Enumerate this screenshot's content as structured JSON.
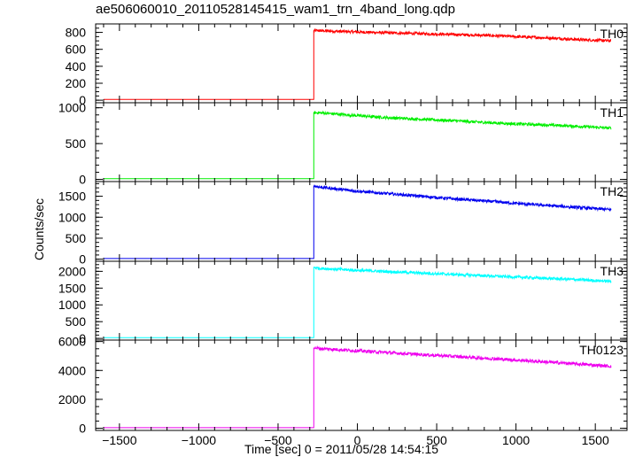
{
  "title": "ae506060010_20110528145415_wam1_trn_4band_long.qdp",
  "xlabel": "Time [sec] 0 = 2011/05/28 14:54:15",
  "ylabel": "Counts/sec",
  "chart_data": [
    {
      "type": "line",
      "panel": "TH0",
      "color": "#ff0000",
      "xlim": [
        -1650,
        1700
      ],
      "ylim": [
        -30,
        900
      ],
      "yticks": [
        0,
        200,
        400,
        600,
        800
      ],
      "ytick_labels": [
        "0",
        "200",
        "400",
        "600",
        "800"
      ],
      "series": [
        {
          "name": "TH0",
          "x": [
            -1600,
            -275,
            -275,
            -240,
            0,
            200,
            400,
            600,
            800,
            1000,
            1200,
            1400,
            1600
          ],
          "y": [
            10,
            10,
            820,
            820,
            805,
            795,
            785,
            775,
            765,
            750,
            735,
            715,
            700
          ]
        }
      ]
    },
    {
      "type": "line",
      "panel": "TH1",
      "color": "#00ee00",
      "xlim": [
        -1650,
        1700
      ],
      "ylim": [
        -30,
        1070
      ],
      "yticks": [
        0,
        500,
        1000
      ],
      "ytick_labels": [
        "0",
        "500",
        "1000"
      ],
      "series": [
        {
          "name": "TH1",
          "x": [
            -1600,
            -275,
            -275,
            -240,
            0,
            200,
            400,
            600,
            800,
            1000,
            1200,
            1400,
            1600
          ],
          "y": [
            10,
            10,
            930,
            930,
            890,
            860,
            840,
            820,
            795,
            775,
            760,
            740,
            715
          ]
        }
      ]
    },
    {
      "type": "line",
      "panel": "TH2",
      "color": "#0000ee",
      "xlim": [
        -1650,
        1700
      ],
      "ylim": [
        -50,
        1850
      ],
      "yticks": [
        0,
        500,
        1000,
        1500
      ],
      "ytick_labels": [
        "0",
        "500",
        "1000",
        "1500"
      ],
      "series": [
        {
          "name": "TH2",
          "x": [
            -1600,
            -275,
            -275,
            -240,
            0,
            200,
            400,
            600,
            800,
            1000,
            1200,
            1400,
            1600
          ],
          "y": [
            15,
            15,
            1750,
            1720,
            1620,
            1560,
            1500,
            1440,
            1390,
            1330,
            1280,
            1230,
            1180
          ]
        }
      ]
    },
    {
      "type": "line",
      "panel": "TH3",
      "color": "#00ffff",
      "xlim": [
        -1650,
        1700
      ],
      "ylim": [
        -50,
        2300
      ],
      "yticks": [
        0,
        500,
        1000,
        1500,
        2000
      ],
      "ytick_labels": [
        "0",
        "500",
        "1000",
        "1500",
        "2000"
      ],
      "series": [
        {
          "name": "TH3",
          "x": [
            -1600,
            -275,
            -275,
            -240,
            0,
            200,
            400,
            600,
            800,
            1000,
            1200,
            1400,
            1600
          ],
          "y": [
            20,
            20,
            2120,
            2090,
            2030,
            1990,
            1950,
            1910,
            1870,
            1830,
            1790,
            1750,
            1700
          ]
        }
      ]
    },
    {
      "type": "line",
      "panel": "TH0123",
      "color": "#ee00ee",
      "xlim": [
        -1650,
        1700
      ],
      "ylim": [
        -150,
        6100
      ],
      "yticks": [
        0,
        2000,
        4000,
        6000
      ],
      "ytick_labels": [
        "0",
        "2000",
        "4000",
        "6000"
      ],
      "series": [
        {
          "name": "TH0123",
          "x": [
            -1600,
            -275,
            -275,
            -240,
            0,
            200,
            400,
            600,
            800,
            1000,
            1200,
            1400,
            1600
          ],
          "y": [
            40,
            40,
            5580,
            5520,
            5360,
            5230,
            5100,
            4980,
            4850,
            4720,
            4580,
            4440,
            4290
          ]
        }
      ]
    }
  ],
  "xaxis": {
    "ticks": [
      -1500,
      -1000,
      -500,
      0,
      500,
      1000,
      1500
    ],
    "tick_labels": [
      "−1500",
      "−1000",
      "−500",
      "0",
      "500",
      "1000",
      "1500"
    ]
  }
}
